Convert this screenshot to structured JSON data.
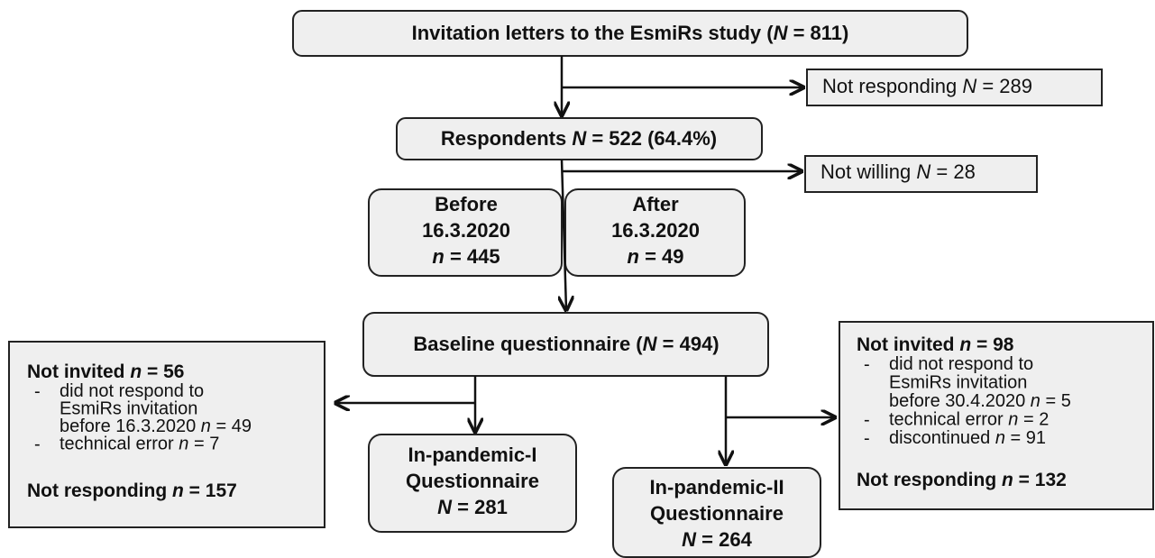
{
  "nodes": {
    "invitation": [
      "Invitation letters to the EsmiRs study (",
      "N",
      " = 811)"
    ],
    "not_responding_1": [
      "Not responding ",
      "N",
      " = 289"
    ],
    "respondents": [
      "Respondents ",
      "N",
      " = 522 (64.4%)"
    ],
    "not_willing": [
      "Not willing ",
      "N",
      " = 28"
    ],
    "before": [
      [
        "Before"
      ],
      [
        "16.3.2020"
      ],
      [
        "n",
        " = 445"
      ]
    ],
    "after": [
      [
        "After"
      ],
      [
        "16.3.2020"
      ],
      [
        "n",
        " = 49"
      ]
    ],
    "baseline": [
      "Baseline questionnaire (",
      "N",
      " = 494)"
    ],
    "pandemic_1": [
      [
        "In-pandemic-I"
      ],
      [
        "Questionnaire"
      ],
      [
        "N",
        " = 281"
      ]
    ],
    "pandemic_2": [
      [
        "In-pandemic-II"
      ],
      [
        "Questionnaire"
      ],
      [
        "N",
        " = 264"
      ]
    ]
  },
  "left_box": {
    "heading": [
      "Not invited ",
      "n",
      " = 56"
    ],
    "items": [
      {
        "bullet": "-",
        "lines": [
          [
            "did not respond to"
          ],
          [
            "EsmiRs invitation"
          ],
          [
            "before 16.3.2020 ",
            "n",
            " = 49"
          ]
        ]
      },
      {
        "bullet": "-",
        "lines": [
          [
            "technical error ",
            "n",
            " = 7"
          ]
        ]
      }
    ],
    "footer": [
      "Not responding ",
      "n",
      " = 157"
    ]
  },
  "right_box": {
    "heading": [
      "Not invited ",
      "n",
      " = 98"
    ],
    "items": [
      {
        "bullet": "-",
        "lines": [
          [
            "did not respond to"
          ],
          [
            "EsmiRs invitation"
          ],
          [
            "before 30.4.2020 ",
            "n",
            " = 5"
          ]
        ]
      },
      {
        "bullet": "-",
        "lines": [
          [
            "technical error ",
            "n",
            " = 2"
          ]
        ]
      },
      {
        "bullet": "-",
        "lines": [
          [
            "discontinued ",
            "n",
            " = 91"
          ]
        ]
      }
    ],
    "footer": [
      "Not responding ",
      "n",
      " = 132"
    ]
  }
}
